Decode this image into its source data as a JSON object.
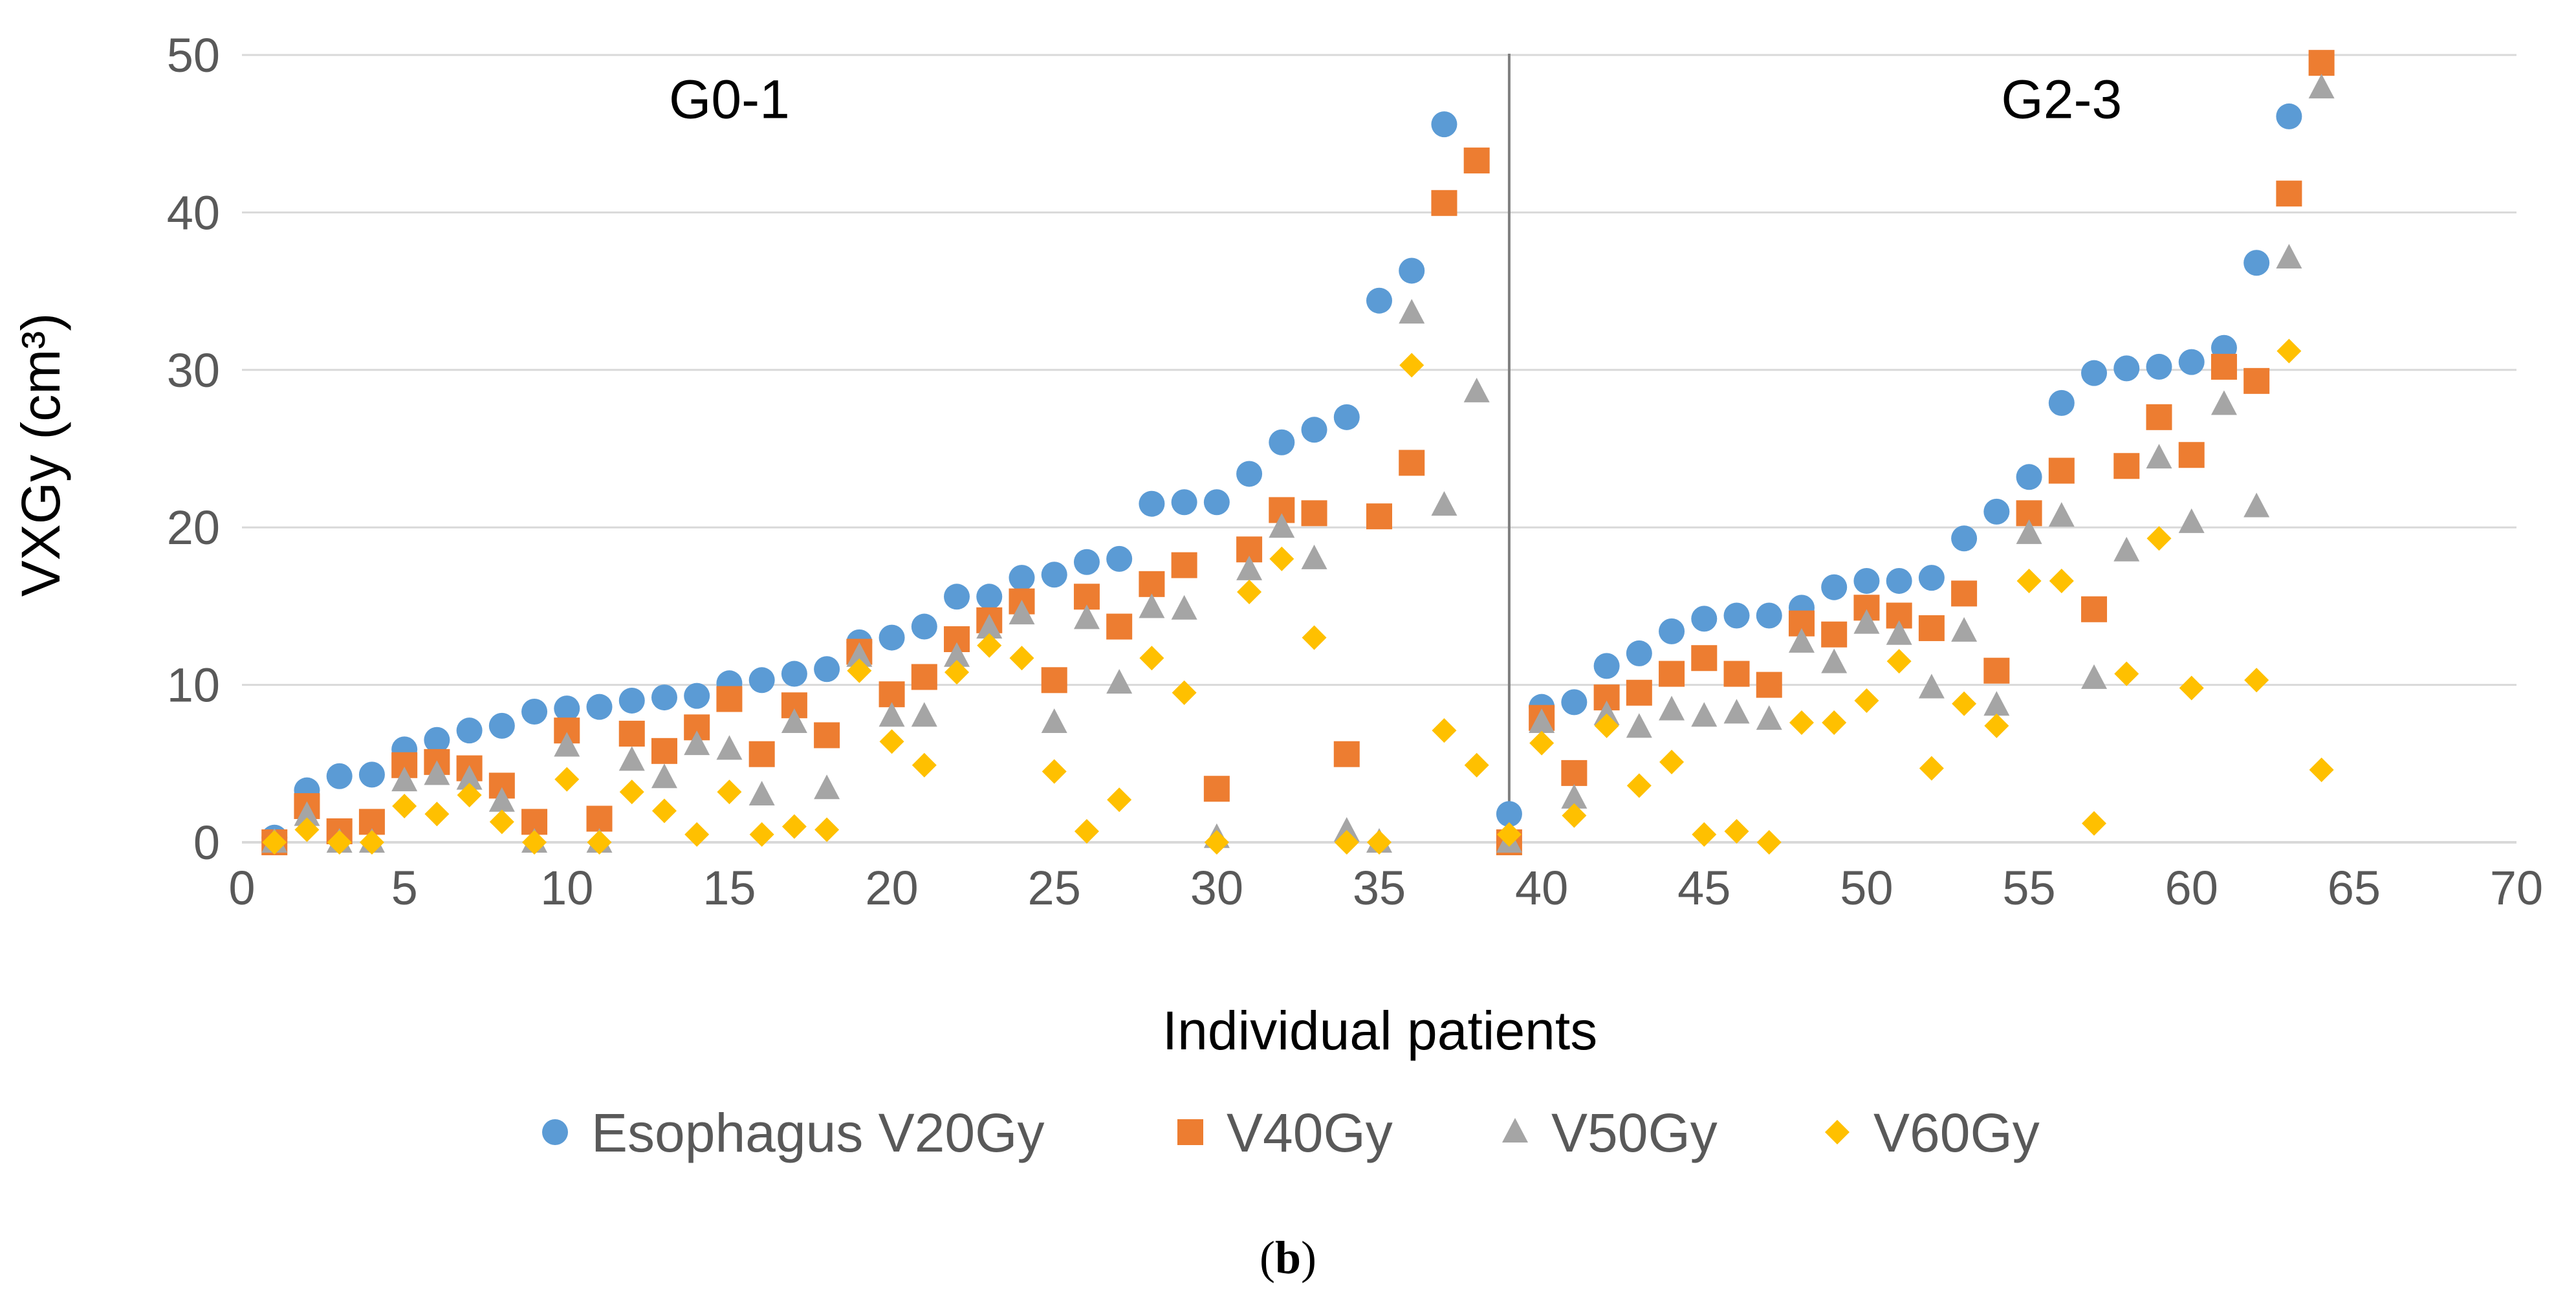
{
  "chart_data": {
    "type": "scatter",
    "title": "",
    "xlabel": "Individual patients",
    "ylabel": "VXGy (cm³)",
    "xlim": [
      0,
      70
    ],
    "ylim": [
      0,
      50
    ],
    "x_ticks": [
      0,
      5,
      10,
      15,
      20,
      25,
      30,
      35,
      40,
      45,
      50,
      55,
      60,
      65,
      70
    ],
    "y_ticks": [
      0,
      10,
      20,
      30,
      40,
      50
    ],
    "grid": true,
    "legend_position": "bottom",
    "divider_x": 39,
    "group_labels": [
      {
        "label": "G0-1",
        "x": 15,
        "y": 46
      },
      {
        "label": "G2-3",
        "x": 56,
        "y": 46
      }
    ],
    "caption": {
      "open": "(",
      "letter": "b",
      "close": ")"
    },
    "series": [
      {
        "name": "Esophagus V20Gy",
        "marker": "circle",
        "color": "#5B9BD5",
        "x": [
          1,
          2,
          3,
          4,
          5,
          6,
          7,
          8,
          9,
          10,
          11,
          12,
          13,
          14,
          15,
          16,
          17,
          18,
          19,
          20,
          21,
          22,
          23,
          24,
          25,
          26,
          27,
          28,
          29,
          30,
          31,
          32,
          33,
          34,
          35,
          36,
          37,
          39,
          40,
          41,
          42,
          43,
          44,
          45,
          46,
          47,
          48,
          49,
          50,
          51,
          52,
          53,
          54,
          55,
          56,
          57,
          58,
          59,
          60,
          61,
          62,
          63
        ],
        "y": [
          0.3,
          3.3,
          4.2,
          4.3,
          5.9,
          6.5,
          7.1,
          7.4,
          8.3,
          8.5,
          8.6,
          9.0,
          9.2,
          9.3,
          10.1,
          10.3,
          10.7,
          11.0,
          12.7,
          13.0,
          13.7,
          15.6,
          15.6,
          16.8,
          17.0,
          17.8,
          18.0,
          21.5,
          21.6,
          21.6,
          23.4,
          25.4,
          26.2,
          27.0,
          34.4,
          36.3,
          45.6,
          1.8,
          8.6,
          8.9,
          11.2,
          12.0,
          13.4,
          14.2,
          14.4,
          14.4,
          14.9,
          16.2,
          16.6,
          16.6,
          16.8,
          19.3,
          21.0,
          23.2,
          27.9,
          29.8,
          30.1,
          30.2,
          30.5,
          31.4,
          36.8,
          46.1
        ]
      },
      {
        "name": "V40Gy",
        "marker": "square",
        "color": "#ED7D31",
        "x": [
          1,
          2,
          3,
          4,
          5,
          6,
          7,
          8,
          9,
          10,
          11,
          12,
          13,
          14,
          15,
          16,
          17,
          18,
          19,
          20,
          21,
          22,
          23,
          24,
          25,
          26,
          27,
          28,
          29,
          30,
          31,
          32,
          33,
          34,
          35,
          36,
          37,
          38,
          39,
          40,
          41,
          42,
          43,
          44,
          45,
          46,
          47,
          48,
          49,
          50,
          51,
          52,
          53,
          54,
          55,
          56,
          57,
          58,
          59,
          60,
          61,
          62,
          63,
          64
        ],
        "y": [
          0,
          2.3,
          0.7,
          1.3,
          4.9,
          5.1,
          4.7,
          3.6,
          1.3,
          7.1,
          1.5,
          6.9,
          5.8,
          7.3,
          9.1,
          5.6,
          8.7,
          6.8,
          12.1,
          9.4,
          10.5,
          12.9,
          14.1,
          15.3,
          10.3,
          15.6,
          13.7,
          16.4,
          17.6,
          3.4,
          18.6,
          21.1,
          20.9,
          5.6,
          20.7,
          24.1,
          40.6,
          43.3,
          0,
          7.9,
          4.4,
          9.2,
          9.5,
          10.7,
          11.7,
          10.7,
          10.0,
          13.9,
          13.2,
          14.9,
          14.4,
          13.6,
          15.8,
          10.9,
          20.9,
          23.6,
          14.8,
          23.9,
          27.0,
          24.6,
          30.2,
          29.3,
          41.2,
          49.5
        ]
      },
      {
        "name": "V50Gy",
        "marker": "triangle",
        "color": "#A5A5A5",
        "x": [
          1,
          2,
          3,
          4,
          5,
          6,
          7,
          8,
          9,
          10,
          11,
          12,
          13,
          14,
          15,
          16,
          17,
          18,
          19,
          20,
          21,
          22,
          23,
          24,
          25,
          26,
          27,
          28,
          29,
          30,
          31,
          32,
          33,
          34,
          35,
          36,
          37,
          38,
          39,
          40,
          41,
          42,
          43,
          44,
          45,
          46,
          47,
          48,
          49,
          50,
          51,
          52,
          53,
          54,
          55,
          56,
          57,
          58,
          59,
          60,
          61,
          62,
          63,
          64
        ],
        "y": [
          0,
          1.7,
          0,
          0,
          3.9,
          4.3,
          4.0,
          2.6,
          0,
          6.1,
          0,
          5.2,
          4.1,
          6.2,
          5.9,
          3.0,
          7.6,
          3.4,
          11.8,
          8.0,
          8.0,
          11.8,
          13.6,
          14.5,
          7.6,
          14.2,
          10.1,
          14.9,
          14.8,
          0.3,
          17.3,
          20.0,
          18.0,
          0.7,
          0,
          33.6,
          21.4,
          28.6,
          0,
          7.6,
          2.8,
          8.1,
          7.3,
          8.4,
          8.0,
          8.2,
          7.8,
          12.7,
          11.4,
          13.9,
          13.2,
          9.8,
          13.4,
          8.7,
          19.6,
          20.7,
          10.4,
          18.5,
          24.4,
          20.3,
          27.8,
          21.3,
          37.1,
          47.9
        ]
      },
      {
        "name": "V60Gy",
        "marker": "diamond",
        "color": "#FFC000",
        "x": [
          1,
          2,
          3,
          4,
          5,
          6,
          7,
          8,
          9,
          10,
          11,
          12,
          13,
          14,
          15,
          16,
          17,
          18,
          19,
          20,
          21,
          22,
          23,
          24,
          25,
          26,
          27,
          28,
          29,
          30,
          31,
          32,
          33,
          34,
          35,
          36,
          37,
          38,
          39,
          40,
          41,
          42,
          43,
          44,
          45,
          46,
          47,
          48,
          49,
          50,
          51,
          52,
          53,
          54,
          55,
          56,
          57,
          58,
          59,
          60,
          62,
          63,
          64
        ],
        "y": [
          0,
          0.8,
          0,
          0,
          2.3,
          1.8,
          3.0,
          1.3,
          0,
          4.0,
          0,
          3.2,
          2.0,
          0.5,
          3.2,
          0.5,
          1.0,
          0.8,
          10.9,
          6.4,
          4.9,
          10.8,
          12.5,
          11.7,
          4.5,
          0.7,
          2.7,
          11.7,
          9.5,
          0,
          15.9,
          18.0,
          13.0,
          0,
          0,
          30.3,
          7.1,
          4.9,
          0.5,
          6.3,
          1.7,
          7.4,
          3.6,
          5.1,
          0.5,
          0.7,
          0,
          7.6,
          7.6,
          9.0,
          11.5,
          4.7,
          8.8,
          7.4,
          16.6,
          16.6,
          1.2,
          10.7,
          19.3,
          9.8,
          10.3,
          31.2,
          4.6
        ]
      }
    ]
  }
}
